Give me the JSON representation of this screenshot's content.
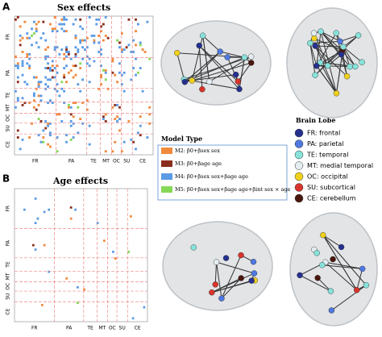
{
  "panel_a": {
    "label": "A",
    "title": "Sex effects",
    "labels": [
      "FR",
      "PA",
      "TE",
      "MT",
      "OC",
      "SU",
      "CE"
    ]
  },
  "panel_b": {
    "label": "B",
    "title": "Age effects",
    "labels": [
      "FR",
      "PA",
      "TE",
      "MT",
      "OC",
      "SU",
      "CE"
    ]
  },
  "model_type": {
    "title": "Model Type",
    "items": [
      {
        "label": "M2: β0+βsex sex",
        "color": "#f08a3c"
      },
      {
        "label": "M3: β0+βage age",
        "color": "#8b2d1c"
      },
      {
        "label": "M4: β0+βsex sex+βage age",
        "color": "#5b9be6"
      },
      {
        "label": "M5: β0+βsex sex+βage age+βint sex × age",
        "color": "#86d957"
      }
    ]
  },
  "brain_lobe": {
    "title": "Brain Lobe",
    "items": [
      {
        "label": "FR: frontal",
        "color": "#25308f"
      },
      {
        "label": "PA: parietal",
        "color": "#4f78e0"
      },
      {
        "label": "TE: temporal",
        "color": "#86e3db"
      },
      {
        "label": "MT: medial temporal",
        "color": "#e4eef2"
      },
      {
        "label": "OC: occipital",
        "color": "#f1d11b"
      },
      {
        "label": "SU: subcortical",
        "color": "#d8342b"
      },
      {
        "label": "CE: cerebellum",
        "color": "#4a170d"
      }
    ]
  }
}
